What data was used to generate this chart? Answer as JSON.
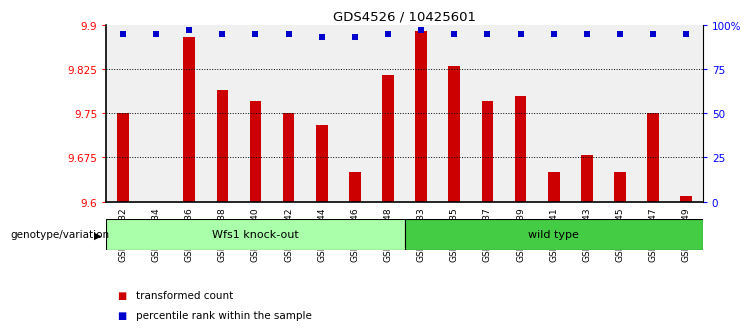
{
  "title": "GDS4526 / 10425601",
  "categories": [
    "GSM825432",
    "GSM825434",
    "GSM825436",
    "GSM825438",
    "GSM825440",
    "GSM825442",
    "GSM825444",
    "GSM825446",
    "GSM825448",
    "GSM825433",
    "GSM825435",
    "GSM825437",
    "GSM825439",
    "GSM825441",
    "GSM825443",
    "GSM825445",
    "GSM825447",
    "GSM825449"
  ],
  "red_values": [
    9.75,
    9.6,
    9.88,
    9.79,
    9.77,
    9.75,
    9.73,
    9.65,
    9.815,
    9.89,
    9.83,
    9.77,
    9.78,
    9.65,
    9.68,
    9.65,
    9.75,
    9.61
  ],
  "blue_values": [
    95,
    95,
    97,
    95,
    95,
    95,
    93,
    93,
    95,
    97,
    95,
    95,
    95,
    95,
    95,
    95,
    95,
    95
  ],
  "group1_label": "Wfs1 knock-out",
  "group2_label": "wild type",
  "group1_count": 9,
  "group2_count": 9,
  "ylim_left": [
    9.6,
    9.9
  ],
  "ylim_right": [
    0,
    100
  ],
  "yticks_left": [
    9.6,
    9.675,
    9.75,
    9.825,
    9.9
  ],
  "yticks_right": [
    0,
    25,
    50,
    75,
    100
  ],
  "ytick_labels_left": [
    "9.6",
    "9.675",
    "9.75",
    "9.825",
    "9.9"
  ],
  "ytick_labels_right": [
    "0",
    "25",
    "50",
    "75",
    "100%"
  ],
  "grid_values": [
    9.675,
    9.75,
    9.825
  ],
  "bar_color": "#cc0000",
  "dot_color": "#0000cc",
  "group1_color": "#aaffaa",
  "group2_color": "#44cc44",
  "bg_color": "#f0f0f0",
  "legend_items": [
    "transformed count",
    "percentile rank within the sample"
  ],
  "genotype_label": "genotype/variation"
}
